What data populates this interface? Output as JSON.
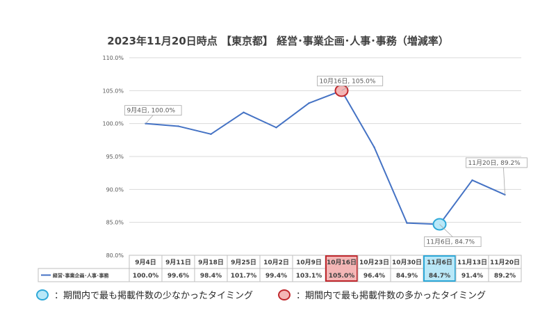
{
  "chart_data": {
    "type": "line",
    "title": "2023年11月20日時点 【東京都】 経営･事業企画･人事･事務（増減率）",
    "categories": [
      "9月4日",
      "9月11日",
      "9月18日",
      "9月25日",
      "10月2日",
      "10月9日",
      "10月16日",
      "10月23日",
      "10月30日",
      "11月6日",
      "11月13日",
      "11月20日"
    ],
    "series": [
      {
        "name": "経営･事業企画･人事･事務",
        "values": [
          100.0,
          99.6,
          98.4,
          101.7,
          99.4,
          103.1,
          105.0,
          96.4,
          84.9,
          84.7,
          91.4,
          89.2
        ],
        "table_values": [
          "100.0%",
          "99.6%",
          "98.4%",
          "101.7%",
          "99.4%",
          "103.1%",
          "105.0%",
          "96.4%",
          "84.9%",
          "84.7%",
          "91.4%",
          "89.2%"
        ],
        "color": "#4472c4"
      }
    ],
    "ylim": [
      80,
      110
    ],
    "yticks": [
      "80.0%",
      "85.0%",
      "90.0%",
      "95.0%",
      "100.0%",
      "105.0%",
      "110.0%"
    ],
    "grid": true,
    "data_labels": [
      {
        "index": 0,
        "text": "9月4日, 100.0%"
      },
      {
        "index": 6,
        "text": "10月16日, 105.0%"
      },
      {
        "index": 9,
        "text": "11月6日, 84.7%"
      },
      {
        "index": 11,
        "text": "11月20日, 89.2%"
      }
    ],
    "highlight_max_index": 6,
    "highlight_min_index": 9,
    "colors": {
      "max": "#c0282d",
      "max_fill": "#f4b6b6",
      "min": "#2da8d8",
      "min_fill": "#b9e8f8"
    }
  },
  "legend": {
    "min_label": "：期間内で最も掲載件数の少なかったタイミング",
    "max_label": "：期間内で最も掲載件数の多かったタイミング"
  }
}
